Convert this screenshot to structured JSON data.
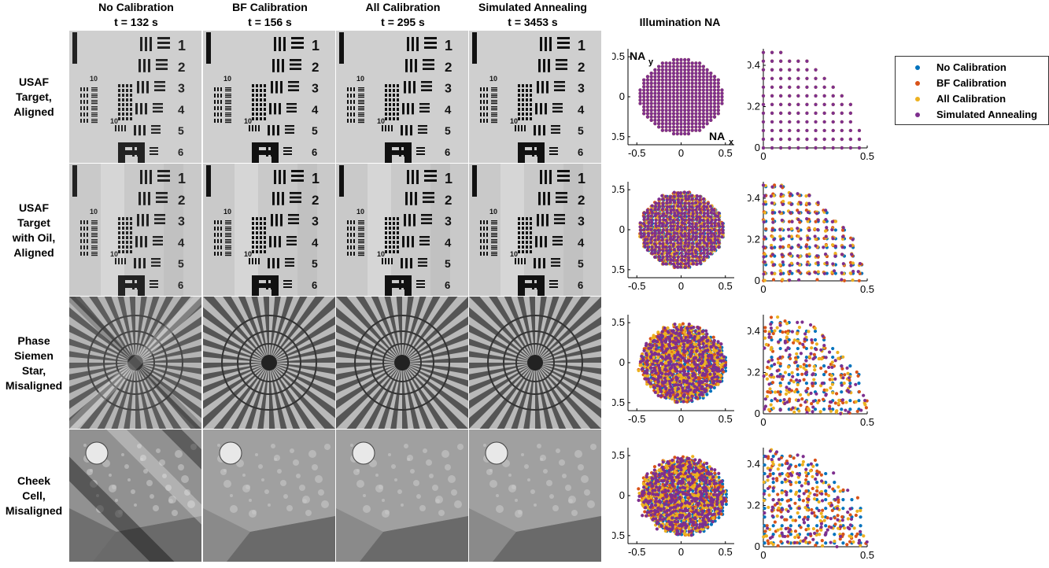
{
  "column_headers": [
    {
      "line1": "No Calibration",
      "line2": "t = 132 s"
    },
    {
      "line1": "BF Calibration",
      "line2": "t = 156 s"
    },
    {
      "line1": "All Calibration",
      "line2": "t = 295 s"
    },
    {
      "line1": "Simulated Annealing",
      "line2": "t = 3453 s"
    }
  ],
  "na_header": "Illumination NA",
  "rows": [
    {
      "label_lines": [
        "USAF",
        "Target,",
        "Aligned"
      ],
      "image": "usaf"
    },
    {
      "label_lines": [
        "USAF",
        "Target",
        "with Oil,",
        "Aligned"
      ],
      "image": "usaf-oil"
    },
    {
      "label_lines": [
        "Phase",
        "Siemen",
        "Star,",
        "Misaligned"
      ],
      "image": "siemens-star"
    },
    {
      "label_lines": [
        "Cheek",
        "Cell,",
        "Misaligned"
      ],
      "image": "cheek-cell"
    }
  ],
  "usaf_digits": [
    "1",
    "2",
    "3",
    "4",
    "5",
    "6"
  ],
  "usaf_small_labels": [
    "10",
    "10"
  ],
  "axis_labels": {
    "nax": "NA",
    "nax_sub": "x",
    "nay": "NA",
    "nay_sub": "y"
  },
  "legend": [
    {
      "name": "No Calibration",
      "color": "#0072BD"
    },
    {
      "name": "BF Calibration",
      "color": "#D95319"
    },
    {
      "name": "All Calibration",
      "color": "#EDB120"
    },
    {
      "name": "Simulated Annealing",
      "color": "#7E2F8E"
    }
  ],
  "chart_data": [
    {
      "type": "scatter",
      "panel": "full-disk",
      "row": 1,
      "xlim": [
        -0.6,
        0.6
      ],
      "ylim": [
        -0.6,
        0.6
      ],
      "xticks": [
        "-0.5",
        "0",
        "0.5"
      ],
      "yticks": [
        "0.5",
        "0",
        "-0.5"
      ],
      "misalignment": 0
    },
    {
      "type": "scatter",
      "panel": "quadrant",
      "row": 1,
      "xlim": [
        0,
        0.5
      ],
      "ylim": [
        0,
        0.48
      ],
      "xticks": [
        "0",
        "0.5"
      ],
      "yticks": [
        "0.4",
        "0.2",
        "0"
      ],
      "misalignment": 0
    },
    {
      "type": "scatter",
      "panel": "full-disk",
      "row": 2,
      "xlim": [
        -0.6,
        0.6
      ],
      "ylim": [
        -0.6,
        0.6
      ],
      "xticks": [
        "-0.5",
        "0",
        "0.5"
      ],
      "yticks": [
        "0.5",
        "0",
        "-0.5"
      ],
      "misalignment": 0.015
    },
    {
      "type": "scatter",
      "panel": "quadrant",
      "row": 2,
      "xlim": [
        0,
        0.5
      ],
      "ylim": [
        0,
        0.48
      ],
      "xticks": [
        "0",
        "0.5"
      ],
      "yticks": [
        "0.4",
        "0.2",
        "0"
      ],
      "misalignment": 0.015
    },
    {
      "type": "scatter",
      "panel": "full-disk",
      "row": 3,
      "xlim": [
        -0.6,
        0.6
      ],
      "ylim": [
        -0.6,
        0.6
      ],
      "xticks": [
        "-0.5",
        "0",
        "0.5"
      ],
      "yticks": [
        "0.5",
        "0",
        "-0.5"
      ],
      "misalignment": 0.05
    },
    {
      "type": "scatter",
      "panel": "quadrant",
      "row": 3,
      "xlim": [
        0,
        0.5
      ],
      "ylim": [
        0,
        0.48
      ],
      "xticks": [
        "0",
        "0.5"
      ],
      "yticks": [
        "0.4",
        "0.2",
        "0"
      ],
      "misalignment": 0.05
    },
    {
      "type": "scatter",
      "panel": "full-disk",
      "row": 4,
      "xlim": [
        -0.6,
        0.6
      ],
      "ylim": [
        -0.6,
        0.6
      ],
      "xticks": [
        "-0.5",
        "0",
        "0.5"
      ],
      "yticks": [
        "0.5",
        "0",
        "-0.5"
      ],
      "misalignment": 0.06
    },
    {
      "type": "scatter",
      "panel": "quadrant",
      "row": 4,
      "xlim": [
        0,
        0.5
      ],
      "ylim": [
        0,
        0.48
      ],
      "xticks": [
        "0",
        "0.5"
      ],
      "yticks": [
        "0.4",
        "0.2",
        "0"
      ],
      "misalignment": 0.06
    }
  ]
}
